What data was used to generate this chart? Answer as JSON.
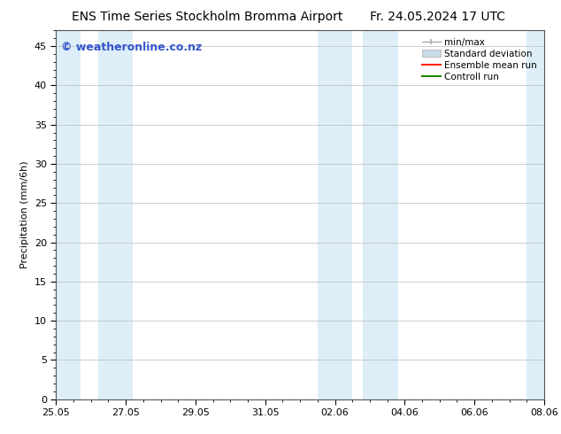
{
  "title_left": "ENS Time Series Stockholm Bromma Airport",
  "title_right": "Fr. 24.05.2024 17 UTC",
  "ylabel": "Precipitation (mm/6h)",
  "watermark": "© weatheronline.co.nz",
  "xlim_start": 0,
  "xlim_end": 14,
  "ylim": [
    0,
    47
  ],
  "yticks": [
    0,
    5,
    10,
    15,
    20,
    25,
    30,
    35,
    40,
    45
  ],
  "xtick_labels": [
    "25.05",
    "27.05",
    "29.05",
    "31.05",
    "02.06",
    "04.06",
    "06.06",
    "08.06"
  ],
  "xtick_positions": [
    0,
    2,
    4,
    6,
    8,
    10,
    12,
    14
  ],
  "shaded_bands": [
    [
      0,
      0.7
    ],
    [
      1.2,
      2.2
    ],
    [
      7.5,
      8.5
    ],
    [
      8.8,
      9.8
    ],
    [
      13.5,
      14
    ]
  ],
  "band_color": "#ddeef8",
  "background_color": "#ffffff",
  "plot_bg_color": "#ffffff",
  "grid_color": "#bbbbbb",
  "title_fontsize": 10,
  "axis_fontsize": 8,
  "tick_fontsize": 8,
  "watermark_color": "#3355cc",
  "watermark_fontsize": 9,
  "legend_color_minmax": "#aaaaaa",
  "legend_color_std": "#c8dce8",
  "legend_color_ens": "#ff2200",
  "legend_color_ctrl": "#228800"
}
